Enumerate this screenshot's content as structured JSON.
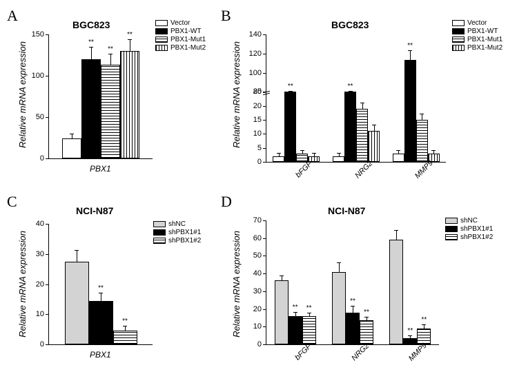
{
  "panels": {
    "A": {
      "letter": "A",
      "title": "BGC823",
      "ylabel": "Relative mRNA expression",
      "xlabel": "PBX1",
      "ymax": 150,
      "ystep": 50,
      "legend": [
        "Vector",
        "PBX1-WT",
        "PBX1-Mut1",
        "PBX1-Mut2"
      ],
      "fills": [
        "white",
        "black",
        "hstripe",
        "vstripe"
      ],
      "groups": [
        {
          "label": "",
          "bars": [
            {
              "v": 24,
              "err": 5,
              "sig": ""
            },
            {
              "v": 120,
              "err": 14,
              "sig": "**"
            },
            {
              "v": 113,
              "err": 13,
              "sig": "**"
            },
            {
              "v": 130,
              "err": 13,
              "sig": "**"
            }
          ]
        }
      ]
    },
    "B": {
      "letter": "B",
      "title": "BGC823",
      "ylabel": "Relative mRNA expression",
      "ymax": 140,
      "break_low": 25,
      "break_high": 80,
      "yticks_low": [
        0,
        5,
        10,
        15,
        20,
        25
      ],
      "yticks_high": [
        80,
        100,
        120,
        140
      ],
      "legend": [
        "Vector",
        "PBX1-WT",
        "PBX1-Mut1",
        "PBX1-Mut2"
      ],
      "fills": [
        "white",
        "black",
        "hstripe",
        "vstripe"
      ],
      "groups": [
        {
          "label": "bFGF",
          "bars": [
            {
              "v": 2,
              "err": 1,
              "sig": ""
            },
            {
              "v": 49,
              "err": 5,
              "sig": "**"
            },
            {
              "v": 3,
              "err": 1,
              "sig": ""
            },
            {
              "v": 2,
              "err": 1,
              "sig": ""
            }
          ]
        },
        {
          "label": "NRG2",
          "bars": [
            {
              "v": 2,
              "err": 1,
              "sig": ""
            },
            {
              "v": 56,
              "err": 11,
              "sig": "**"
            },
            {
              "v": 19,
              "err": 2,
              "sig": ""
            },
            {
              "v": 11,
              "err": 2,
              "sig": ""
            }
          ]
        },
        {
          "label": "MMP9",
          "bars": [
            {
              "v": 3,
              "err": 1,
              "sig": ""
            },
            {
              "v": 113,
              "err": 10,
              "sig": "**"
            },
            {
              "v": 15,
              "err": 2,
              "sig": ""
            },
            {
              "v": 3,
              "err": 1,
              "sig": ""
            }
          ]
        }
      ]
    },
    "C": {
      "letter": "C",
      "title": "NCI-N87",
      "ylabel": "Relative mRNA expression",
      "xlabel": "PBX1",
      "ymax": 40,
      "ystep": 10,
      "legend": [
        "shNC",
        "shPBX1#1",
        "shPBX1#2"
      ],
      "fills": [
        "lightgray",
        "black",
        "hstripe"
      ],
      "groups": [
        {
          "label": "",
          "bars": [
            {
              "v": 27.5,
              "err": 3.5,
              "sig": ""
            },
            {
              "v": 14.5,
              "err": 2.5,
              "sig": "**"
            },
            {
              "v": 4.5,
              "err": 1.5,
              "sig": "**"
            }
          ]
        }
      ]
    },
    "D": {
      "letter": "D",
      "title": "NCI-N87",
      "ylabel": "Relative mRNA expression",
      "ymax": 70,
      "ystep": 10,
      "legend": [
        "shNC",
        "shPBX1#1",
        "shPBX1#2"
      ],
      "fills": [
        "lightgray",
        "black",
        "hstripe"
      ],
      "groups": [
        {
          "label": "bFGF",
          "bars": [
            {
              "v": 36,
              "err": 2.5,
              "sig": ""
            },
            {
              "v": 16,
              "err": 2,
              "sig": "**"
            },
            {
              "v": 16,
              "err": 1.5,
              "sig": "**"
            }
          ]
        },
        {
          "label": "NRG2",
          "bars": [
            {
              "v": 41,
              "err": 5,
              "sig": ""
            },
            {
              "v": 18,
              "err": 3.5,
              "sig": "**"
            },
            {
              "v": 13.5,
              "err": 1.5,
              "sig": "**"
            }
          ]
        },
        {
          "label": "MMP9",
          "bars": [
            {
              "v": 59,
              "err": 5,
              "sig": ""
            },
            {
              "v": 3.5,
              "err": 1,
              "sig": "**"
            },
            {
              "v": 9,
              "err": 2,
              "sig": "**"
            }
          ]
        }
      ]
    }
  },
  "colors": {
    "white": "#ffffff",
    "black": "#000000",
    "lightgray": "#d3d3d3"
  }
}
